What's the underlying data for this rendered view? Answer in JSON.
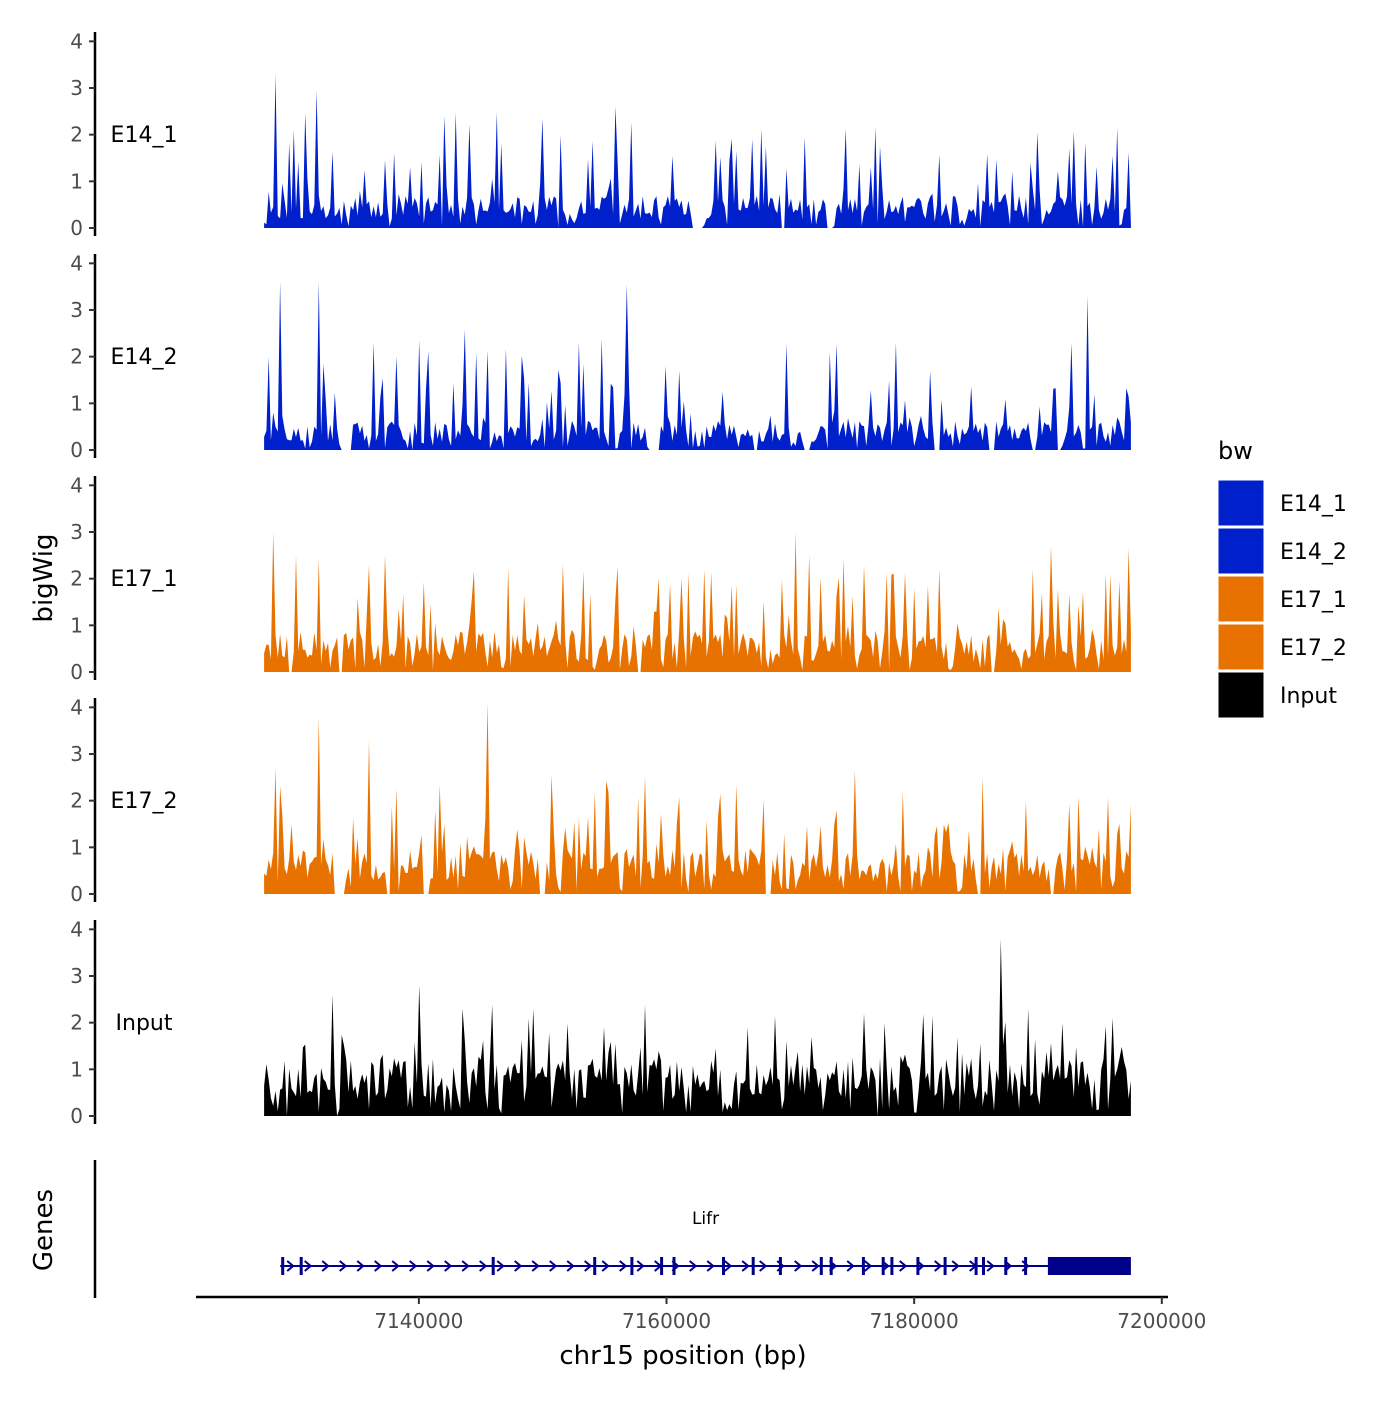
{
  "chart_data": {
    "type": "area",
    "title": "",
    "xlabel": "chr15 position (bp)",
    "ylabel": "bigWig",
    "genes_label": "Genes",
    "xlim": [
      7122000,
      7200500
    ],
    "ylim": [
      0,
      4.2
    ],
    "x_ticks": [
      7140000,
      7160000,
      7180000,
      7200000
    ],
    "x_tick_labels": [
      "7140000",
      "7160000",
      "7180000",
      "7200000"
    ],
    "y_ticks": [
      0,
      1,
      2,
      3,
      4
    ],
    "y_tick_labels": [
      "0",
      "1",
      "2",
      "3",
      "4"
    ],
    "legend": {
      "title": "bw",
      "position": "right",
      "entries": [
        {
          "name": "E14_1",
          "color": "#0020CC"
        },
        {
          "name": "E14_2",
          "color": "#0020CC"
        },
        {
          "name": "E17_1",
          "color": "#E87200"
        },
        {
          "name": "E17_2",
          "color": "#E87200"
        },
        {
          "name": "Input",
          "color": "#000000"
        }
      ]
    },
    "series_range": [
      7127500,
      7197500
    ],
    "series": [
      {
        "name": "E14_1",
        "color": "#0020CC",
        "seed": 11,
        "base": 0.55,
        "peak": 2.0,
        "gaps": [
          [
            7162000,
            7163000
          ],
          [
            7169200,
            7169600
          ],
          [
            7173000,
            7173500
          ]
        ],
        "peaks": [
          [
            7128500,
            3.3
          ],
          [
            7131800,
            2.95
          ],
          [
            7129900,
            2.1
          ],
          [
            7142000,
            2.4
          ],
          [
            7150000,
            2.35
          ],
          [
            7138000,
            1.6
          ],
          [
            7190000,
            2.05
          ],
          [
            7192500,
            1.7
          ],
          [
            7160400,
            1.55
          ],
          [
            7196000,
            1.55
          ]
        ]
      },
      {
        "name": "E14_2",
        "color": "#0020CC",
        "seed": 23,
        "base": 0.5,
        "peak": 2.1,
        "gaps": [
          [
            7133600,
            7134500
          ],
          [
            7139300,
            7139600
          ],
          [
            7158500,
            7159500
          ],
          [
            7167000,
            7167300
          ],
          [
            7171000,
            7171700
          ],
          [
            7181500,
            7182200
          ],
          [
            7186000,
            7186500
          ],
          [
            7189500,
            7189800
          ],
          [
            7191500,
            7191900
          ]
        ],
        "peaks": [
          [
            7128700,
            3.6
          ],
          [
            7132000,
            3.6
          ],
          [
            7156700,
            3.55
          ],
          [
            7194000,
            3.3
          ],
          [
            7127800,
            2.0
          ],
          [
            7140000,
            2.35
          ],
          [
            7153000,
            2.3
          ],
          [
            7178500,
            2.3
          ],
          [
            7192800,
            2.3
          ],
          [
            7160000,
            1.8
          ]
        ]
      },
      {
        "name": "E17_1",
        "color": "#E87200",
        "seed": 37,
        "base": 0.7,
        "peak": 1.8,
        "gaps": [
          [
            7129500,
            7129800
          ],
          [
            7133500,
            7133800
          ],
          [
            7157600,
            7157900
          ],
          [
            7186200,
            7186600
          ]
        ],
        "peaks": [
          [
            7128200,
            3.0
          ],
          [
            7130000,
            2.5
          ],
          [
            7137200,
            2.5
          ],
          [
            7170500,
            3.0
          ],
          [
            7191000,
            2.7
          ],
          [
            7197300,
            2.65
          ],
          [
            7176000,
            2.3
          ],
          [
            7182000,
            2.2
          ],
          [
            7163000,
            2.2
          ],
          [
            7180000,
            1.8
          ]
        ]
      },
      {
        "name": "E17_2",
        "color": "#E87200",
        "seed": 41,
        "base": 0.75,
        "peak": 1.9,
        "gaps": [
          [
            7133200,
            7134000
          ],
          [
            7137400,
            7137800
          ],
          [
            7140300,
            7140800
          ],
          [
            7149700,
            7150300
          ],
          [
            7168000,
            7168400
          ],
          [
            7185000,
            7185500
          ],
          [
            7191000,
            7191400
          ]
        ],
        "peaks": [
          [
            7145500,
            4.1
          ],
          [
            7132000,
            3.8
          ],
          [
            7136000,
            3.3
          ],
          [
            7128500,
            2.7
          ],
          [
            7175200,
            2.65
          ],
          [
            7185500,
            2.5
          ],
          [
            7179000,
            2.2
          ],
          [
            7189000,
            2.0
          ],
          [
            7195000,
            1.4
          ]
        ]
      },
      {
        "name": "Input",
        "color": "#000000",
        "seed": 53,
        "base": 1.0,
        "peak": 1.3,
        "gaps": [
          [
            7129200,
            7129500
          ],
          [
            7133300,
            7133500
          ],
          [
            7177000,
            7177200
          ]
        ],
        "peaks": [
          [
            7187000,
            3.8
          ],
          [
            7140000,
            2.8
          ],
          [
            7133000,
            2.6
          ],
          [
            7149300,
            2.3
          ],
          [
            7189300,
            2.3
          ],
          [
            7192000,
            2.0
          ],
          [
            7196000,
            2.1
          ],
          [
            7155000,
            1.9
          ]
        ]
      }
    ],
    "gene": {
      "name": "Lifr",
      "strand": "+",
      "color": "#00008B",
      "start": 7128800,
      "end": 7197500,
      "thick_start": 7190800,
      "exons": [
        7129000,
        7130500,
        7146000,
        7154200,
        7157200,
        7159600,
        7160600,
        7164600,
        7167000,
        7169200,
        7172500,
        7173300,
        7175900,
        7177500,
        7178200,
        7180300,
        7182500,
        7185000,
        7185600,
        7187400,
        7189000
      ]
    }
  }
}
